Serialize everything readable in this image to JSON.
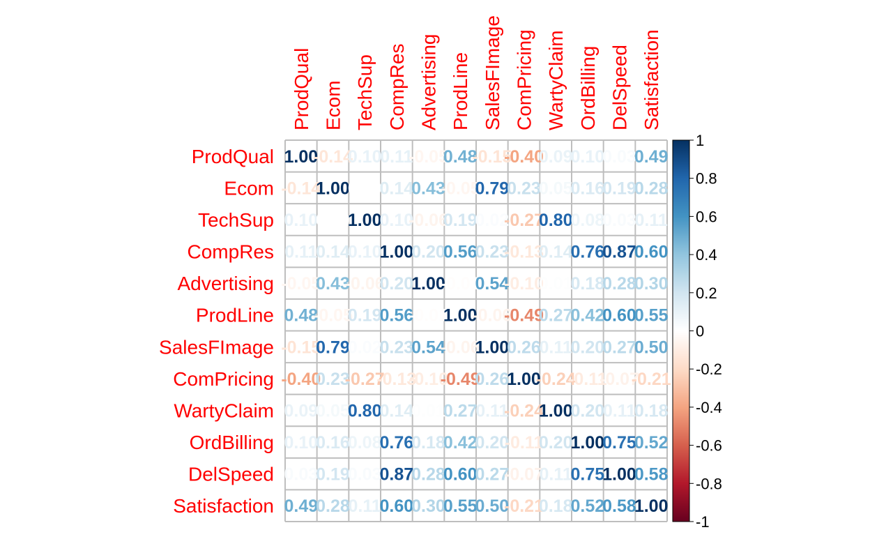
{
  "chart_data": {
    "type": "heatmap",
    "variables": [
      "ProdQual",
      "Ecom",
      "TechSup",
      "CompRes",
      "Advertising",
      "ProdLine",
      "SalesFImage",
      "ComPricing",
      "WartyClaim",
      "OrdBilling",
      "DelSpeed",
      "Satisfaction"
    ],
    "matrix": [
      [
        1.0,
        -0.14,
        0.1,
        0.11,
        -0.05,
        0.48,
        -0.15,
        -0.4,
        0.09,
        0.1,
        0.03,
        0.49
      ],
      [
        -0.14,
        1.0,
        0.0,
        0.14,
        0.43,
        -0.05,
        0.79,
        0.23,
        0.05,
        0.16,
        0.19,
        0.28
      ],
      [
        0.1,
        0.0,
        1.0,
        0.1,
        -0.06,
        0.19,
        0.02,
        -0.27,
        0.8,
        0.08,
        0.03,
        0.11
      ],
      [
        0.11,
        0.14,
        0.1,
        1.0,
        0.2,
        0.56,
        0.23,
        -0.13,
        0.14,
        0.76,
        0.87,
        0.6
      ],
      [
        -0.05,
        0.43,
        -0.06,
        0.2,
        1.0,
        -0.01,
        0.54,
        -0.1,
        0.01,
        0.18,
        0.28,
        0.3
      ],
      [
        0.48,
        -0.05,
        0.19,
        0.56,
        -0.01,
        1.0,
        -0.06,
        -0.49,
        0.27,
        0.42,
        0.6,
        0.55
      ],
      [
        -0.15,
        0.79,
        0.02,
        0.23,
        0.54,
        -0.06,
        1.0,
        0.26,
        0.11,
        0.2,
        0.27,
        0.5
      ],
      [
        -0.4,
        0.23,
        -0.27,
        -0.13,
        -0.1,
        -0.49,
        0.26,
        1.0,
        -0.24,
        -0.11,
        -0.07,
        -0.21
      ],
      [
        0.09,
        0.05,
        0.8,
        0.14,
        0.01,
        0.27,
        0.11,
        -0.24,
        1.0,
        0.2,
        0.11,
        0.18
      ],
      [
        0.1,
        0.16,
        0.08,
        0.76,
        0.18,
        0.42,
        0.2,
        -0.11,
        0.2,
        1.0,
        0.75,
        0.52
      ],
      [
        0.03,
        0.19,
        0.03,
        0.87,
        0.28,
        0.6,
        0.27,
        -0.07,
        0.11,
        0.75,
        1.0,
        0.58
      ],
      [
        0.49,
        0.28,
        0.11,
        0.6,
        0.3,
        0.55,
        0.5,
        -0.21,
        0.18,
        0.52,
        0.58,
        1.0
      ]
    ],
    "color_scale": {
      "min": -1,
      "max": 1,
      "ticks": [
        "1",
        "0.8",
        "0.6",
        "0.4",
        "0.2",
        "0",
        "-0.2",
        "-0.4",
        "-0.6",
        "-0.8",
        "-1"
      ],
      "stops": [
        "#67001F",
        "#B2182B",
        "#D6604D",
        "#F4A582",
        "#FDDBC7",
        "#FFFFFF",
        "#D1E5F0",
        "#92C5DE",
        "#4393C3",
        "#2166AC",
        "#053061"
      ]
    },
    "label_color": "#FF0000",
    "grid": true,
    "legend": "right"
  }
}
